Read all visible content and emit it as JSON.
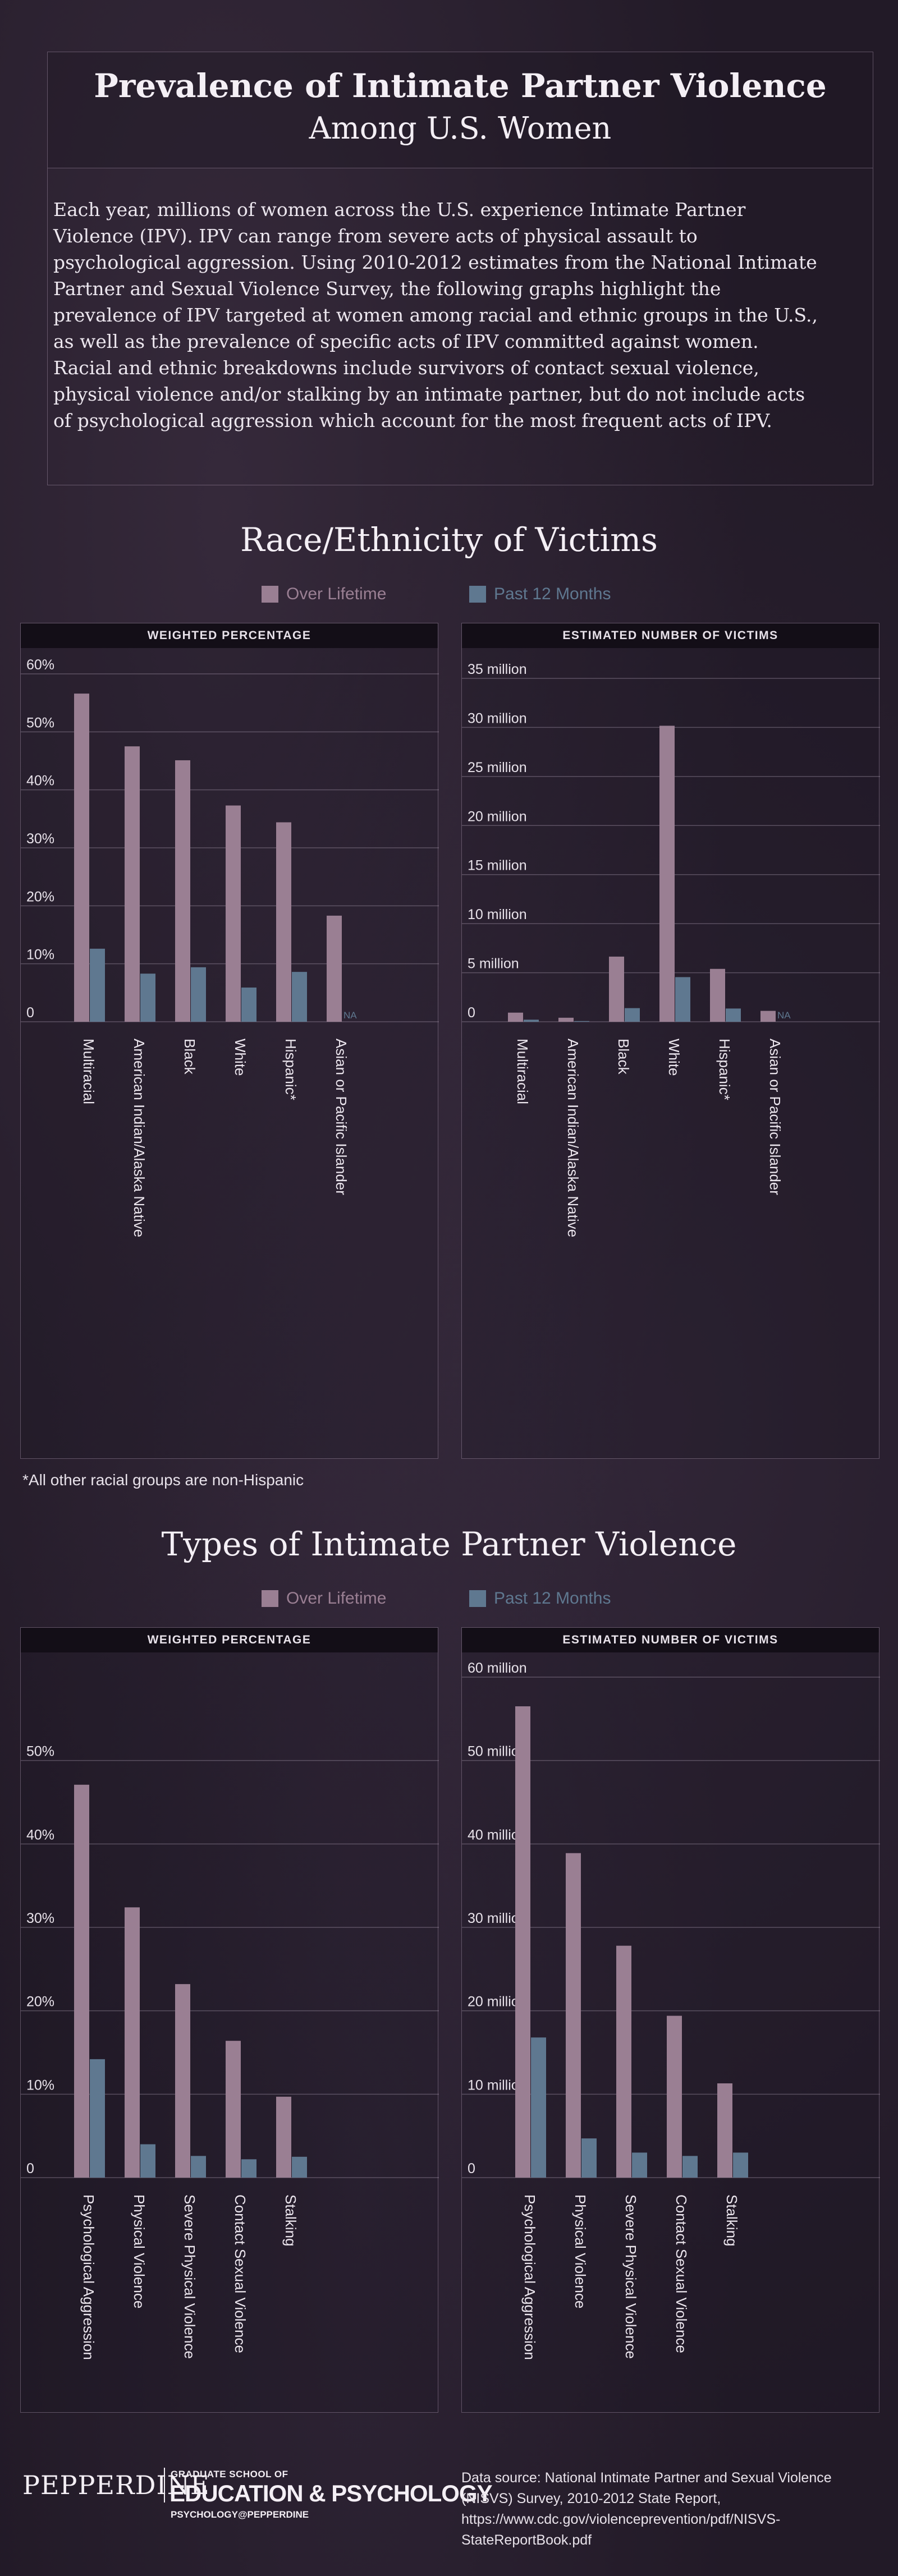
{
  "header": {
    "title_line1": "Prevalence of Intimate Partner Violence",
    "title_line2": "Among U.S. Women"
  },
  "intro": "Each year, millions of women across the U.S. experience Intimate Partner Violence (IPV). IPV can range from severe acts of physical assault to psychological aggression. Using 2010-2012 estimates from the National Intimate Partner and Sexual Violence Survey, the following graphs highlight the prevalence of IPV targeted at women among racial and ethnic groups in the U.S., as well as the prevalence of specific acts of IPV committed against women. Racial and ethnic breakdowns include survivors of contact sexual violence, physical violence and/or stalking by an intimate partner, but do not include acts of psychological aggression which account for the most frequent acts of IPV.",
  "sections": {
    "race_title": "Race/Ethnicity of Victims",
    "types_title": "Types of Intimate Partner Violence",
    "legend_lifetime": "Over Lifetime",
    "legend_past12": "Past 12 Months"
  },
  "colors": {
    "lifetime": "#9a7f93",
    "past12": "#5f7890"
  },
  "footnote": "*All other racial groups are non-Hispanic",
  "footer": {
    "logo_main": "PEPPERDINE",
    "logo_sub1": "GRADUATE SCHOOL OF",
    "logo_sub2": "EDUCATION & PSYCHOLOGY",
    "logo_sub3": "PSYCHOLOGY@PEPPERDINE",
    "source": "Data source: National Intimate Partner and Sexual Violence (NISVS) Survey, 2010-2012 State Report, https://www.cdc.gov/violenceprevention/pdf/NISVS-StateReportBook.pdf"
  },
  "chart_data": [
    {
      "type": "bar",
      "title": "WEIGHTED PERCENTAGE",
      "categories": [
        "Multiracial",
        "American Indian/Alaska Native",
        "Black",
        "White",
        "Hispanic*",
        "Asian or Pacific Islander"
      ],
      "series": [
        {
          "name": "Over Lifetime",
          "values": [
            56.6,
            47.5,
            45.1,
            37.3,
            34.4,
            18.3
          ]
        },
        {
          "name": "Past 12 Months",
          "values": [
            12.6,
            8.3,
            9.4,
            5.9,
            8.6,
            null
          ]
        }
      ],
      "ylim": [
        0,
        60
      ],
      "ytick_labels": [
        "0",
        "10%",
        "20%",
        "30%",
        "40%",
        "50%",
        "60%"
      ],
      "na_label": "NA",
      "grid": true
    },
    {
      "type": "bar",
      "title": "ESTIMATED NUMBER OF VICTIMS",
      "categories": [
        "Multiracial",
        "American Indian/Alaska Native",
        "Black",
        "White",
        "Hispanic*",
        "Asian or Pacific Islander"
      ],
      "series": [
        {
          "name": "Over Lifetime",
          "values": [
            0.93,
            0.41,
            6.64,
            30.17,
            5.39,
            1.11
          ]
        },
        {
          "name": "Past 12 Months",
          "values": [
            0.21,
            0.07,
            1.39,
            4.55,
            1.35,
            null
          ]
        }
      ],
      "ylim": [
        0,
        35
      ],
      "ytick_labels": [
        "0",
        "5 million",
        "10 million",
        "15 million",
        "20 million",
        "25 million",
        "30 million",
        "35 million"
      ],
      "na_label": "NA",
      "grid": true
    },
    {
      "type": "bar",
      "title": "WEIGHTED PERCENTAGE",
      "categories": [
        "Psychological Aggression",
        "Physical Violence",
        "Severe Physical Violence",
        "Contact Sexual Violence",
        "Stalking"
      ],
      "series": [
        {
          "name": "Over Lifetime",
          "values": [
            47.1,
            32.4,
            23.2,
            16.4,
            9.7
          ]
        },
        {
          "name": "Past 12 Months",
          "values": [
            14.2,
            4.0,
            2.6,
            2.2,
            2.5
          ]
        }
      ],
      "ylim": [
        0,
        60
      ],
      "ytick_labels": [
        "0",
        "10%",
        "20%",
        "30%",
        "40%",
        "50%"
      ],
      "grid": true
    },
    {
      "type": "bar",
      "title": "ESTIMATED NUMBER OF VICTIMS",
      "categories": [
        "Psychological Aggression",
        "Physical Violence",
        "Severe Physical Violence",
        "Contact Sexual Violence",
        "Stalking"
      ],
      "series": [
        {
          "name": "Over Lifetime",
          "values": [
            56.5,
            38.9,
            27.8,
            19.4,
            11.3
          ]
        },
        {
          "name": "Past 12 Months",
          "values": [
            16.8,
            4.7,
            3.0,
            2.6,
            3.0
          ]
        }
      ],
      "ylim": [
        0,
        60
      ],
      "ytick_labels": [
        "0",
        "10 million",
        "20 million",
        "30 million",
        "40 million",
        "50 million",
        "60 million"
      ],
      "grid": true
    }
  ]
}
